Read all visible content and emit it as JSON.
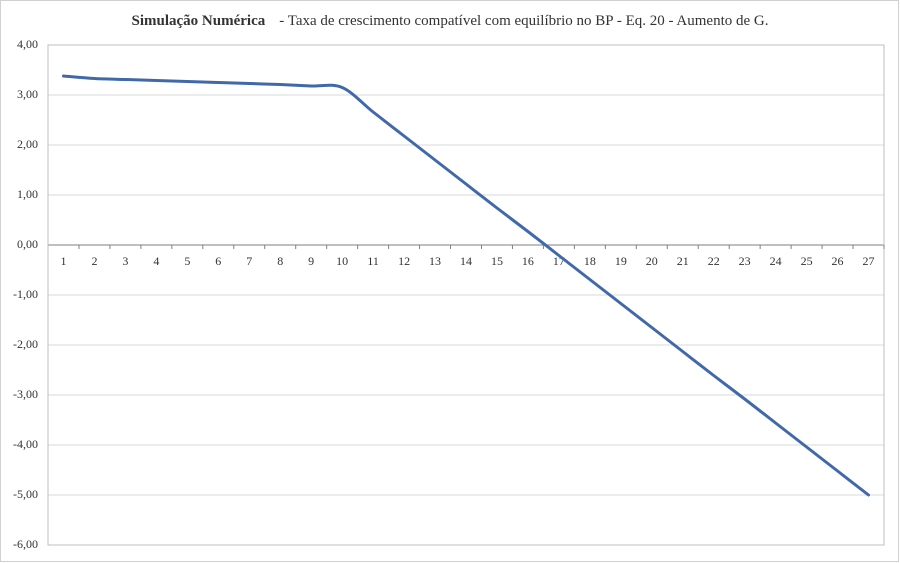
{
  "chart_data": {
    "type": "line",
    "title": "Simulação Numérica",
    "subtitle": "- Taxa de crescimento compatível com equilíbrio no BP - Eq. 20 - Aumento de G.",
    "categories": [
      "1",
      "2",
      "3",
      "4",
      "5",
      "6",
      "7",
      "8",
      "9",
      "10",
      "11",
      "12",
      "13",
      "14",
      "15",
      "16",
      "17",
      "18",
      "19",
      "20",
      "21",
      "22",
      "23",
      "24",
      "25",
      "26",
      "27"
    ],
    "series": [
      {
        "color": "#4169aa",
        "values": [
          3.38,
          3.33,
          3.31,
          3.29,
          3.27,
          3.25,
          3.23,
          3.21,
          3.18,
          3.15,
          2.66,
          2.18,
          1.7,
          1.22,
          0.74,
          0.27,
          -0.21,
          -0.69,
          -1.17,
          -1.65,
          -2.13,
          -2.61,
          -3.08,
          -3.56,
          -4.04,
          -4.52,
          -5.0
        ]
      }
    ],
    "ylim": [
      -6,
      4
    ],
    "yticks": [
      {
        "value": -6,
        "label": "-6,00"
      },
      {
        "value": -5,
        "label": "-5,00"
      },
      {
        "value": -4,
        "label": "-4,00"
      },
      {
        "value": -3,
        "label": "-3,00"
      },
      {
        "value": -2,
        "label": "-2,00"
      },
      {
        "value": -1,
        "label": "-1,00"
      },
      {
        "value": 0,
        "label": "0,00"
      },
      {
        "value": 1,
        "label": "1,00"
      },
      {
        "value": 2,
        "label": "2,00"
      },
      {
        "value": 3,
        "label": "3,00"
      },
      {
        "value": 4,
        "label": "4,00"
      }
    ],
    "grid": true,
    "smooth": true
  }
}
